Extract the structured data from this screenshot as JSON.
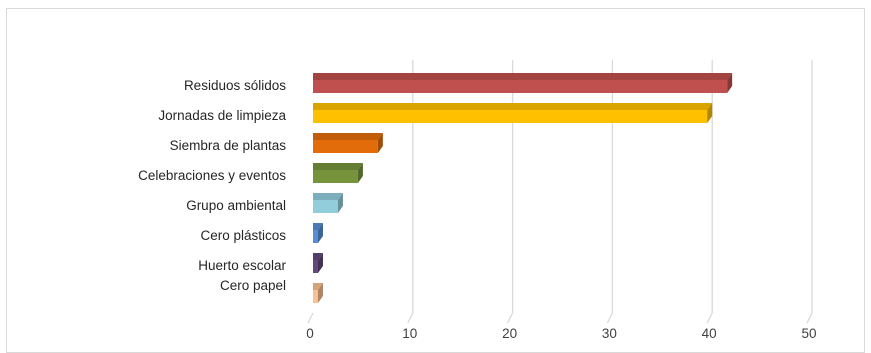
{
  "chart_data": {
    "type": "bar",
    "orientation": "horizontal",
    "style": "3d",
    "categories": [
      "Residuos sólidos",
      "Jornadas de limpieza",
      "Siembra de plantas",
      "Celebraciones y eventos",
      "Grupo ambiental",
      "Cero plásticos",
      "Huerto escolar",
      "Cero papel"
    ],
    "values": [
      42,
      40,
      7,
      5,
      3,
      1,
      1,
      1
    ],
    "colors": [
      "#c0504d",
      "#ffc000",
      "#e36c0a",
      "#77933c",
      "#92cddc",
      "#558ed5",
      "#604a7b",
      "#fac090"
    ],
    "ticks": [
      "0",
      "10",
      "20",
      "30",
      "40",
      "50"
    ],
    "xlim": [
      0,
      50
    ],
    "grid": true,
    "legend": "none",
    "title": "",
    "xlabel": "",
    "ylabel": ""
  }
}
